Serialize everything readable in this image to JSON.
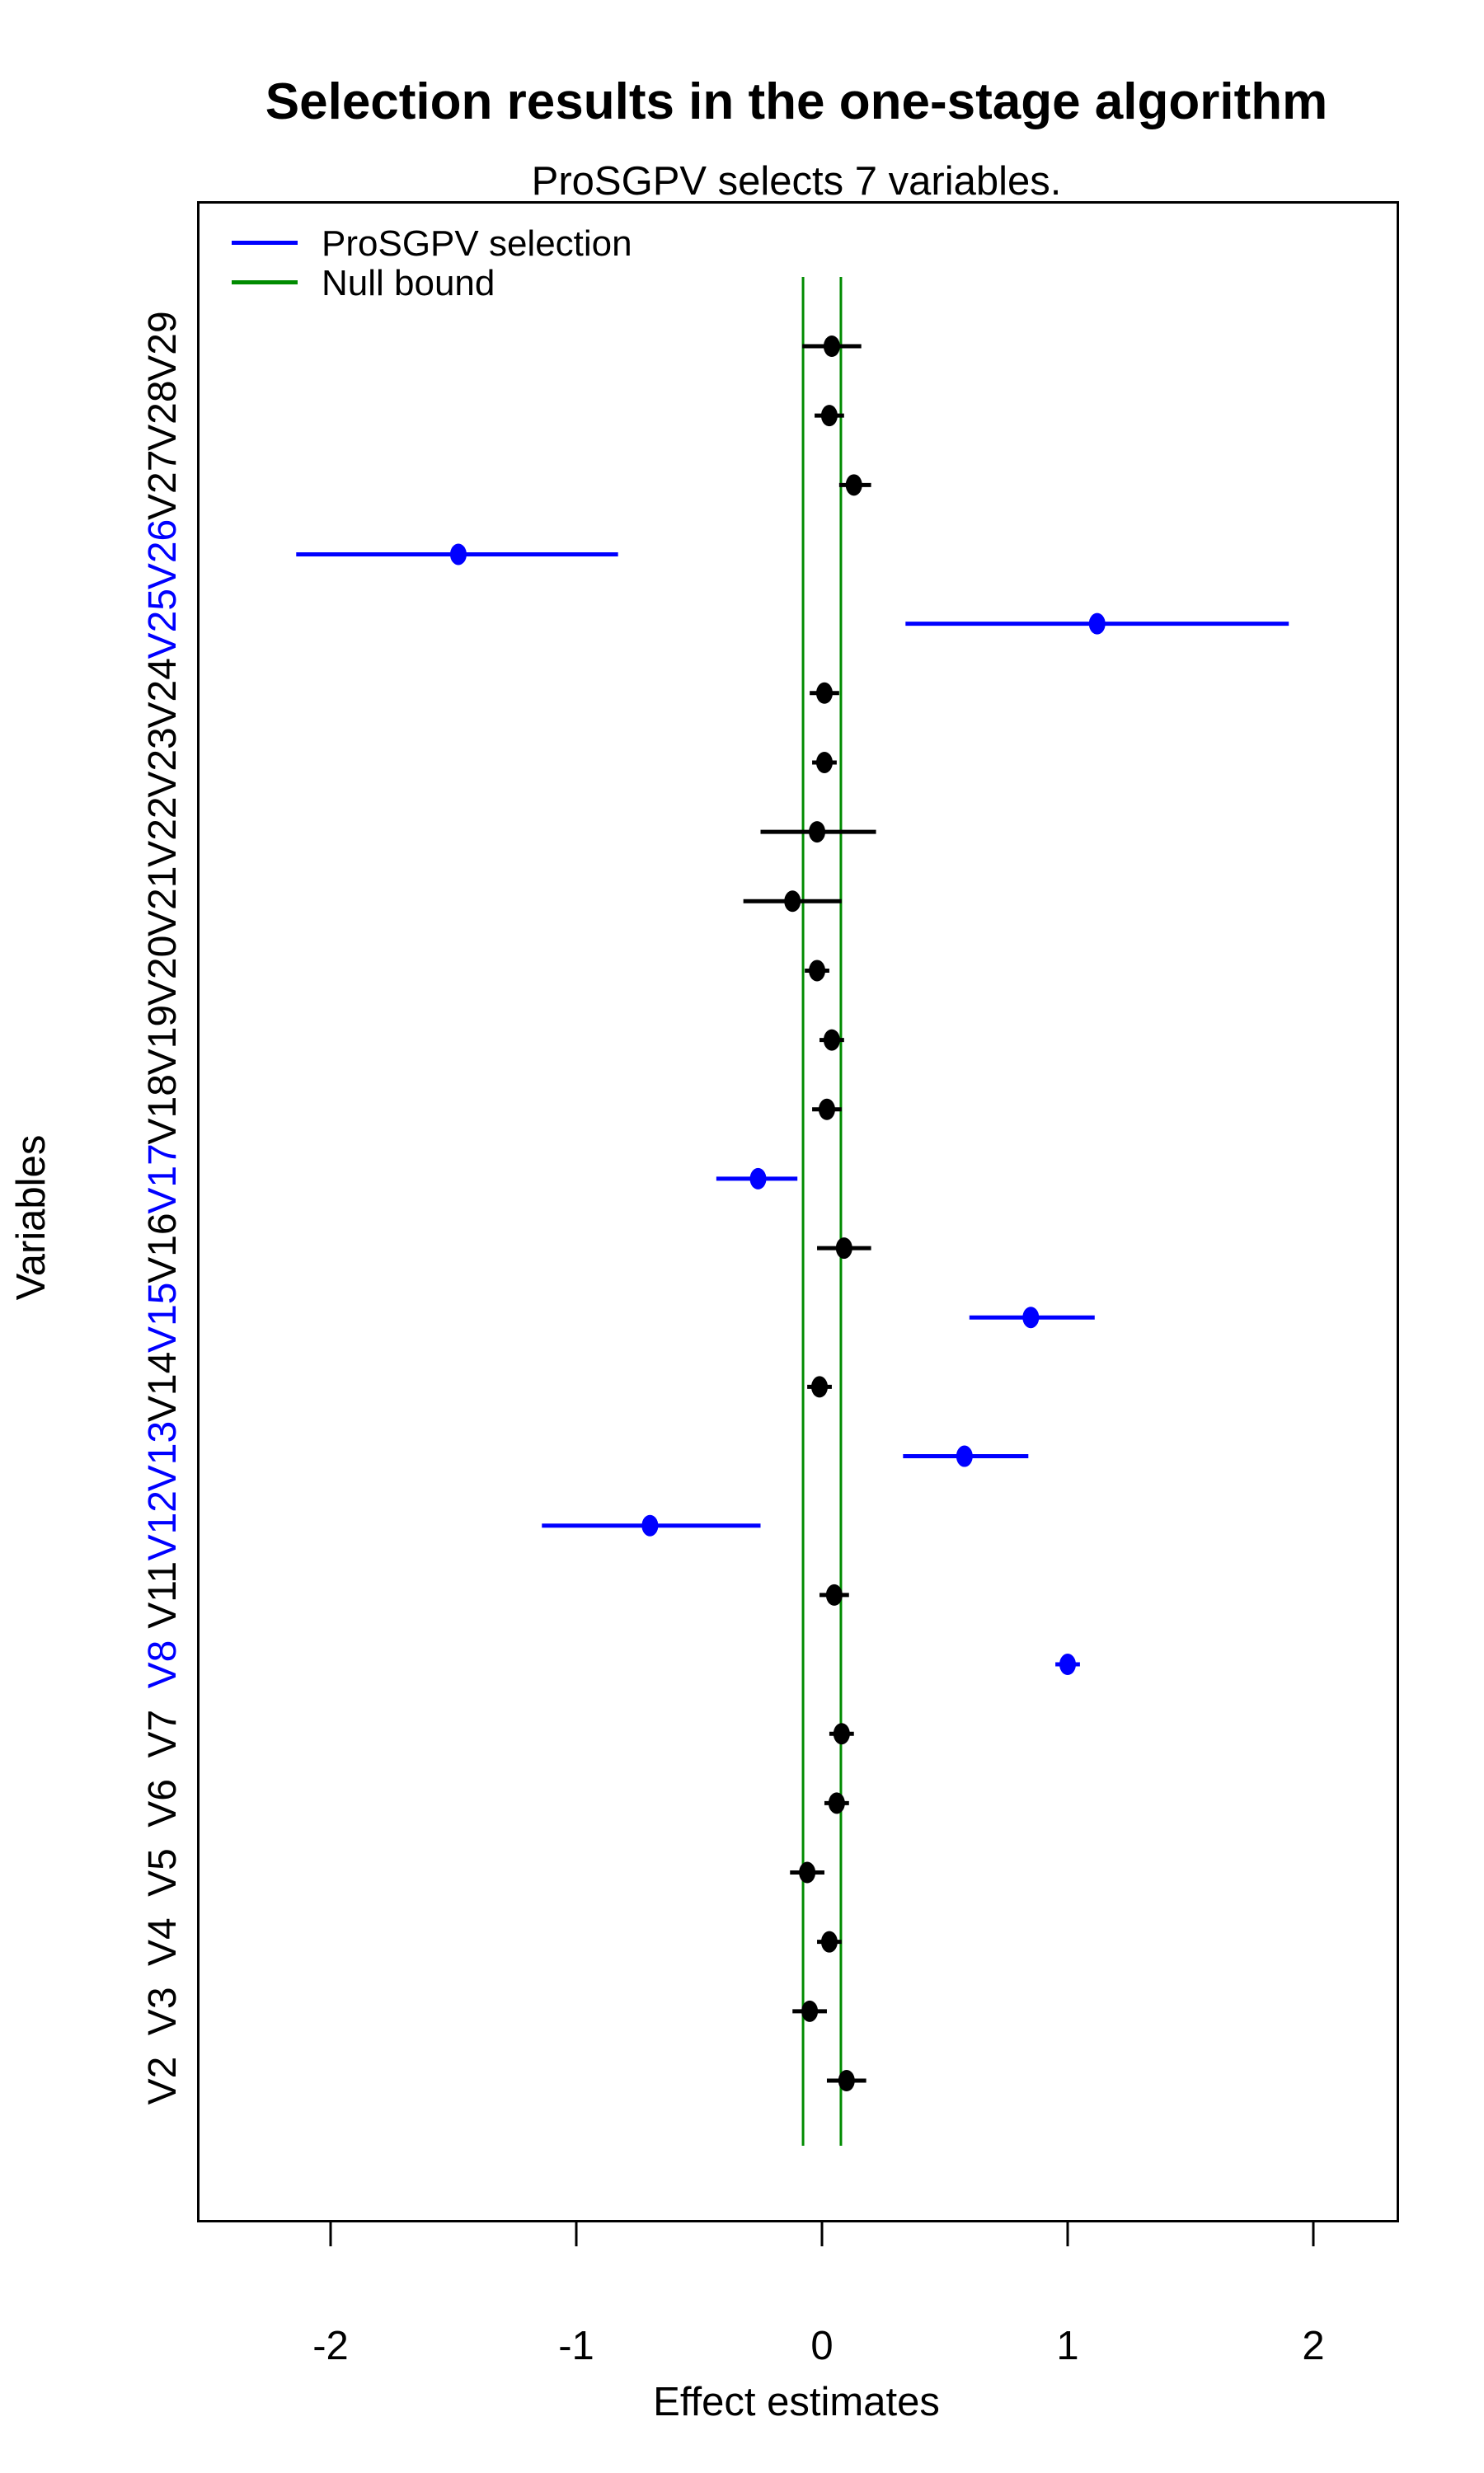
{
  "legend": [
    {
      "label": "ProSGPV selection",
      "color": "#0000ff"
    },
    {
      "label": "Null bound",
      "color": "#008b00"
    }
  ],
  "axes": {
    "x_label": "Effect estimates",
    "y_label": "Variables",
    "x_ticks": [
      -2,
      -1,
      0,
      1,
      2
    ]
  },
  "chart_data": {
    "type": "scatter",
    "orientation": "horizontal-forest-plot",
    "title": "Selection results in the one-stage algorithm",
    "subtitle": "ProSGPV selects 7 variables.",
    "xlabel": "Effect estimates",
    "ylabel": "Variables",
    "xlim": [
      -2.54,
      2.34
    ],
    "x_ticks": [
      -2,
      -1,
      0,
      1,
      2
    ],
    "grid": false,
    "null_bound": 0.077,
    "selected_count": 7,
    "colors": {
      "selected": "#0000ff",
      "unselected": "#000000",
      "null_bound": "#008b00"
    },
    "variables": [
      {
        "name": "V2",
        "estimate": 0.1,
        "ci_low": 0.02,
        "ci_high": 0.18,
        "selected": false
      },
      {
        "name": "V3",
        "estimate": -0.05,
        "ci_low": -0.12,
        "ci_high": 0.02,
        "selected": false
      },
      {
        "name": "V4",
        "estimate": 0.03,
        "ci_low": -0.02,
        "ci_high": 0.08,
        "selected": false
      },
      {
        "name": "V5",
        "estimate": -0.06,
        "ci_low": -0.13,
        "ci_high": 0.01,
        "selected": false
      },
      {
        "name": "V6",
        "estimate": 0.06,
        "ci_low": 0.01,
        "ci_high": 0.11,
        "selected": false
      },
      {
        "name": "V7",
        "estimate": 0.08,
        "ci_low": 0.03,
        "ci_high": 0.13,
        "selected": false
      },
      {
        "name": "V8",
        "estimate": 1.0,
        "ci_low": 0.95,
        "ci_high": 1.05,
        "selected": true
      },
      {
        "name": "V11",
        "estimate": 0.05,
        "ci_low": -0.01,
        "ci_high": 0.11,
        "selected": false
      },
      {
        "name": "V12",
        "estimate": -0.7,
        "ci_low": -1.14,
        "ci_high": -0.25,
        "selected": true
      },
      {
        "name": "V13",
        "estimate": 0.58,
        "ci_low": 0.33,
        "ci_high": 0.84,
        "selected": true
      },
      {
        "name": "V14",
        "estimate": -0.01,
        "ci_low": -0.06,
        "ci_high": 0.04,
        "selected": false
      },
      {
        "name": "V15",
        "estimate": 0.85,
        "ci_low": 0.6,
        "ci_high": 1.11,
        "selected": true
      },
      {
        "name": "V16",
        "estimate": 0.09,
        "ci_low": -0.02,
        "ci_high": 0.2,
        "selected": false
      },
      {
        "name": "V17",
        "estimate": -0.26,
        "ci_low": -0.43,
        "ci_high": -0.1,
        "selected": true
      },
      {
        "name": "V18",
        "estimate": 0.02,
        "ci_low": -0.04,
        "ci_high": 0.08,
        "selected": false
      },
      {
        "name": "V19",
        "estimate": 0.04,
        "ci_low": -0.01,
        "ci_high": 0.09,
        "selected": false
      },
      {
        "name": "V20",
        "estimate": -0.02,
        "ci_low": -0.07,
        "ci_high": 0.03,
        "selected": false
      },
      {
        "name": "V21",
        "estimate": -0.12,
        "ci_low": -0.32,
        "ci_high": 0.08,
        "selected": false
      },
      {
        "name": "V22",
        "estimate": -0.02,
        "ci_low": -0.25,
        "ci_high": 0.22,
        "selected": false
      },
      {
        "name": "V23",
        "estimate": 0.01,
        "ci_low": -0.04,
        "ci_high": 0.06,
        "selected": false
      },
      {
        "name": "V24",
        "estimate": 0.01,
        "ci_low": -0.05,
        "ci_high": 0.07,
        "selected": false
      },
      {
        "name": "V25",
        "estimate": 1.12,
        "ci_low": 0.34,
        "ci_high": 1.9,
        "selected": true
      },
      {
        "name": "V26",
        "estimate": -1.48,
        "ci_low": -2.14,
        "ci_high": -0.83,
        "selected": true
      },
      {
        "name": "V27",
        "estimate": 0.13,
        "ci_low": 0.07,
        "ci_high": 0.2,
        "selected": false
      },
      {
        "name": "V28",
        "estimate": 0.03,
        "ci_low": -0.03,
        "ci_high": 0.09,
        "selected": false
      },
      {
        "name": "V29",
        "estimate": 0.04,
        "ci_low": -0.08,
        "ci_high": 0.16,
        "selected": false
      }
    ]
  }
}
